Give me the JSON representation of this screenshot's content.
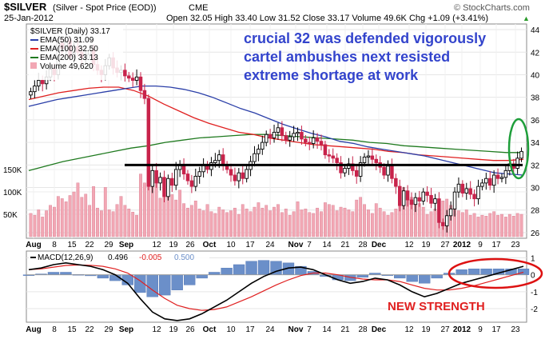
{
  "header": {
    "symbol": "$SILVER",
    "description": "(Silver - Spot Price (EOD))",
    "exchange": "CME",
    "date": "25-Jan-2012",
    "ohlc": "Open 32.05  High 33.40  Low 31.52  Close 33.17  Volume 49.6K  Chg +1.09 (+3.41%)",
    "up_arrow": "▲",
    "watermark": "© StockCharts.com"
  },
  "legend": {
    "title": "$SILVER (Daily) 33.17",
    "ema50": "EMA(50) 31.09",
    "ema100": "EMA(100) 32.50",
    "ema200": "EMA(200) 33.13",
    "volume": "Volume 49,620"
  },
  "annotation": {
    "line1": "crucial 32 was defended vigorously",
    "line2": "cartel ambushes next resisted",
    "line3": "extreme shortage at work",
    "macd_note": "NEW STRENGTH"
  },
  "macd": {
    "label_prefix": "MACD(12,26,9)",
    "v1": "0.496",
    "v2": "-0.005",
    "v3": "0.500"
  },
  "x_labels": [
    "Aug",
    "8",
    "15",
    "22",
    "29",
    "Sep",
    "12",
    "19",
    "26",
    "Oct",
    "10",
    "17",
    "24",
    "Nov",
    "7",
    "14",
    "21",
    "28",
    "Dec",
    "12",
    "19",
    "27",
    "2012",
    "9",
    "17",
    "23"
  ],
  "price_ticks": [
    "44",
    "42",
    "40",
    "38",
    "36",
    "34",
    "32",
    "30",
    "28",
    "26"
  ],
  "volume_ticks": [
    "150K",
    "100K",
    "50K"
  ],
  "macd_ticks": [
    "1",
    "0",
    "-1",
    "-2"
  ],
  "colors": {
    "up": "#000000",
    "down": "#c8234b",
    "ema50": "#2b3fa8",
    "ema100": "#e02020",
    "ema200": "#1f7a1f",
    "volume": "#f2a7b4",
    "annotation": "#3344cc",
    "macd_note": "#e02020",
    "ellipse_green": "#1e9e3a",
    "ellipse_red": "#dd1111",
    "histogram": "#6b8fc9"
  },
  "chart_data": {
    "type": "candlestick",
    "title": "$SILVER (Daily) 33.17",
    "x_range": [
      "2011-08-01",
      "2012-01-25"
    ],
    "y_price_range": [
      25.5,
      44.5
    ],
    "y_volume_ticks_k": [
      50,
      100,
      150
    ],
    "y_macd_range": [
      -2.8,
      1.4
    ],
    "support_level": 32,
    "close": [
      38.5,
      39.0,
      39.5,
      39.2,
      39.8,
      40.5,
      40.0,
      42.8,
      42.3,
      43.0,
      41.6,
      42.5,
      42.0,
      41.5,
      41.8,
      42.2,
      40.9,
      40.4,
      40.0,
      40.8,
      41.5,
      40.6,
      40.2,
      40.4,
      39.9,
      39.7,
      39.5,
      39.8,
      38.6,
      37.9,
      30.1,
      31.5,
      30.4,
      30.9,
      29.2,
      30.8,
      30.2,
      31.6,
      32.0,
      31.2,
      30.6,
      30.1,
      31.0,
      31.4,
      32.0,
      31.6,
      32.2,
      32.4,
      32.9,
      32.0,
      31.6,
      31.1,
      30.6,
      31.3,
      30.8,
      31.6,
      32.3,
      33.0,
      33.4,
      34.0,
      34.7,
      34.4,
      34.9,
      35.3,
      34.6,
      34.2,
      34.5,
      34.8,
      34.9,
      34.3,
      34.0,
      33.9,
      34.4,
      34.1,
      33.8,
      32.9,
      32.8,
      32.6,
      32.2,
      31.3,
      31.7,
      32.1,
      31.5,
      31.0,
      32.2,
      32.7,
      32.8,
      32.5,
      32.2,
      31.8,
      31.1,
      31.9,
      30.8,
      30.1,
      28.4,
      29.7,
      28.9,
      28.5,
      29.1,
      28.8,
      29.6,
      29.3,
      28.6,
      29.0,
      26.9,
      26.6,
      27.5,
      28.1,
      29.6,
      30.3,
      29.5,
      29.9,
      29.4,
      29.0,
      30.1,
      30.4,
      30.8,
      30.2,
      31.1,
      30.8,
      30.9,
      31.5,
      32.1,
      31.7,
      32.6,
      33.2
    ],
    "ema50": [
      37.2,
      37.5,
      37.8,
      38.0,
      38.2,
      38.4,
      38.6,
      38.8,
      39.0,
      39.0,
      38.9,
      38.7,
      38.4,
      38.0,
      37.5,
      37.0,
      36.6,
      36.1,
      35.6,
      35.2,
      34.8,
      34.5,
      34.1,
      33.9,
      33.6,
      33.4,
      33.2,
      33.0,
      32.8,
      32.5,
      32.2,
      31.9,
      31.6,
      31.3,
      31.2,
      31.1
    ],
    "ema100": [
      37.8,
      38.1,
      38.4,
      38.6,
      38.8,
      38.9,
      38.9,
      38.6,
      38.1,
      37.4,
      36.8,
      36.2,
      35.7,
      35.3,
      34.9,
      34.7,
      34.4,
      34.2,
      34.0,
      33.8,
      33.7,
      33.6,
      33.5,
      33.4,
      33.2,
      33.1,
      32.9,
      32.8,
      32.7,
      32.6,
      32.5,
      32.4,
      32.4,
      32.5
    ],
    "ema200": [
      31.5,
      31.9,
      32.3,
      32.6,
      32.9,
      33.2,
      33.5,
      33.7,
      34.0,
      34.2,
      34.4,
      34.5,
      34.6,
      34.7,
      34.7,
      34.6,
      34.5,
      34.4,
      34.3,
      34.2,
      34.0,
      33.9,
      33.7,
      33.6,
      33.5,
      33.4,
      33.3,
      33.2,
      33.1,
      33.1
    ],
    "volume_k": [
      52,
      48,
      60,
      44,
      58,
      70,
      66,
      90,
      85,
      78,
      92,
      100,
      120,
      88,
      95,
      70,
      112,
      64,
      58,
      110,
      60,
      56,
      72,
      90,
      70,
      62,
      55,
      48,
      140,
      120,
      165,
      112,
      128,
      86,
      120,
      110,
      94,
      82,
      104,
      74,
      64,
      70,
      80,
      62,
      58,
      72,
      56,
      52,
      66,
      60,
      54,
      58,
      64,
      50,
      72,
      62,
      56,
      66,
      76,
      64,
      70,
      58,
      66,
      72,
      54,
      62,
      48,
      56,
      78,
      60,
      62,
      54,
      52,
      64,
      56,
      76,
      72,
      70,
      58,
      66,
      64,
      60,
      56,
      82,
      88,
      72,
      60,
      52,
      74,
      64,
      56,
      48,
      54,
      62,
      90,
      110,
      96,
      88,
      80,
      74,
      66,
      50,
      56,
      62,
      72,
      80,
      84,
      70,
      66,
      58,
      54,
      60,
      48,
      52,
      44,
      48,
      46,
      52,
      56,
      48,
      50,
      44,
      50,
      46,
      52,
      50
    ],
    "macd": [
      0.3,
      0.4,
      0.6,
      0.7,
      0.6,
      0.5,
      0.3,
      0.0,
      -0.5,
      -1.4,
      -2.2,
      -2.6,
      -2.7,
      -2.6,
      -2.3,
      -1.9,
      -1.5,
      -1.0,
      -0.5,
      -0.1,
      0.2,
      0.4,
      0.45,
      0.3,
      0.0,
      -0.3,
      -0.5,
      -0.4,
      -0.2,
      -0.3,
      -0.6,
      -1.0,
      -1.3,
      -1.1,
      -0.8,
      -0.5,
      -0.3,
      -0.1,
      0.1,
      0.3,
      0.5
    ],
    "signal": [
      0.3,
      0.35,
      0.45,
      0.55,
      0.58,
      0.56,
      0.5,
      0.35,
      0.1,
      -0.35,
      -0.9,
      -1.4,
      -1.8,
      -2.0,
      -2.1,
      -2.05,
      -1.9,
      -1.6,
      -1.3,
      -0.95,
      -0.6,
      -0.3,
      -0.05,
      0.1,
      0.1,
      0.0,
      -0.15,
      -0.25,
      -0.3,
      -0.3,
      -0.4,
      -0.6,
      -0.8,
      -0.9,
      -0.9,
      -0.8,
      -0.65,
      -0.45,
      -0.25,
      -0.05,
      0.15
    ],
    "xlabel": "",
    "ylabel": ""
  }
}
